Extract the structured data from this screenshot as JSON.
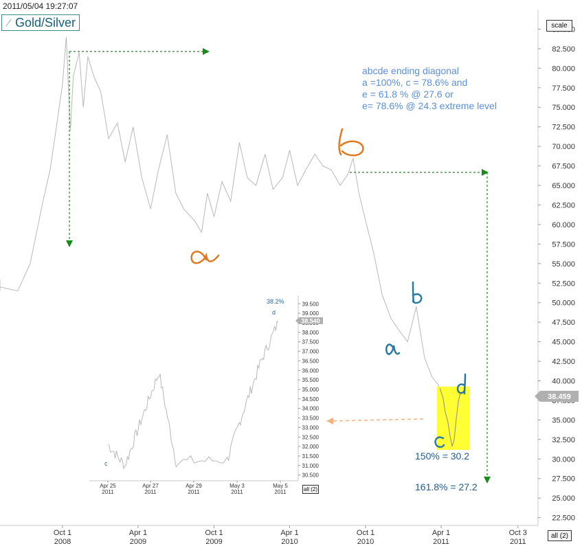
{
  "header": {
    "timestamp": "2011/05/04 19:27:07",
    "title": "Gold/Silver",
    "title_icon": "line-chart-icon",
    "scale_label": "scale",
    "all_label": "all (2)",
    "inset_all_label": "all (2)"
  },
  "annotations": {
    "note_lines": [
      "abcde ending diagonal",
      "a =100%, c = 78.6% and",
      "e = 61.8 % @ 27.6 or",
      "e= 78.6% @ 24.3 extreme level"
    ],
    "fib_150": "150% = 30.2",
    "fib_161": "161.8% = 27.2",
    "hand_labels": {
      "orange_a": "a",
      "orange_b": "b",
      "blue_a": "a",
      "blue_b": "b",
      "blue_c": "c",
      "blue_d": "d"
    },
    "colors": {
      "price_line": "#b8b8b8",
      "axis_text": "#333333",
      "guide_green": "#1a8a1a",
      "highlight": "#ffff33",
      "orange_ink": "#e07820",
      "blue_ink": "#2a7aa0",
      "note_text": "#5b8fd6",
      "fib_text": "#1e5c8e",
      "inset_arrow": "#f5b080",
      "last_price_badge": "#b0b0b0"
    }
  },
  "chart_data": [
    {
      "type": "line",
      "series": [
        {
          "x": [
            "2007-11-01",
            "2008-01-01",
            "2008-02-15",
            "2008-03-15",
            "2008-05-01",
            "2008-06-15",
            "2008-07-15",
            "2008-08-15",
            "2008-09-01",
            "2008-09-15",
            "2008-10-01",
            "2008-10-10",
            "2008-10-20",
            "2008-10-27",
            "2008-11-10",
            "2008-11-20",
            "2008-12-01",
            "2008-12-15",
            "2009-01-01",
            "2009-01-20",
            "2009-02-10",
            "2009-03-01",
            "2009-03-20",
            "2009-04-10",
            "2009-05-01",
            "2009-05-20",
            "2009-06-10",
            "2009-07-01",
            "2009-07-20",
            "2009-08-15",
            "2009-09-01",
            "2009-09-15",
            "2009-10-01",
            "2009-10-20",
            "2009-11-10",
            "2009-12-01",
            "2009-12-20",
            "2010-01-10",
            "2010-02-01",
            "2010-02-20",
            "2010-03-15",
            "2010-04-01",
            "2010-04-20",
            "2010-05-10",
            "2010-06-01",
            "2010-06-20",
            "2010-07-10",
            "2010-08-01",
            "2010-08-20",
            "2010-09-01",
            "2010-09-15",
            "2010-10-01",
            "2010-10-20",
            "2010-11-10",
            "2010-12-01",
            "2010-12-20",
            "2011-01-10",
            "2011-01-31",
            "2011-02-20",
            "2011-03-10",
            "2011-03-25",
            "2011-04-05",
            "2011-04-15",
            "2011-04-25",
            "2011-05-04"
          ],
          "values": [
            52.3,
            52.5,
            51.5,
            53.0,
            52.0,
            51.5,
            55.0,
            63.0,
            67.0,
            72.0,
            78.0,
            84.0,
            72.0,
            79.0,
            82.0,
            75.0,
            81.5,
            79.0,
            77.0,
            71.0,
            73.0,
            68.0,
            72.5,
            66.0,
            62.0,
            67.0,
            71.5,
            64.0,
            62.0,
            60.5,
            59.0,
            64.0,
            61.0,
            65.5,
            63.0,
            70.5,
            66.0,
            65.0,
            69.0,
            64.5,
            66.0,
            69.5,
            65.0,
            67.0,
            69.0,
            67.5,
            67.0,
            65.0,
            66.5,
            68.5,
            64.0,
            60.5,
            56.5,
            51.0,
            48.0,
            46.5,
            45.0,
            49.5,
            43.0,
            40.5,
            39.5,
            35.0,
            31.5,
            35.5,
            38.459
          ],
          "last_value": "38.459"
        }
      ],
      "ylim": [
        21.5,
        87.5
      ],
      "y_ticks": [
        "22.500",
        "25.000",
        "27.500",
        "30.000",
        "32.500",
        "35.000",
        "37.500",
        "40.000",
        "42.500",
        "45.000",
        "47.500",
        "50.000",
        "52.500",
        "55.000",
        "57.500",
        "60.000",
        "62.500",
        "65.000",
        "67.500",
        "70.000",
        "72.500",
        "75.000",
        "77.500",
        "80.000",
        "82.500",
        "85.000"
      ],
      "x_ticks": [
        {
          "value": "2008-10-01",
          "line1": "Oct 1",
          "line2": "2008"
        },
        {
          "value": "2009-04-01",
          "line1": "Apr 1",
          "line2": "2009"
        },
        {
          "value": "2009-10-01",
          "line1": "Oct 1",
          "line2": "2009"
        },
        {
          "value": "2010-04-01",
          "line1": "Apr 1",
          "line2": "2010"
        },
        {
          "value": "2010-10-01",
          "line1": "Oct 1",
          "line2": "2010"
        },
        {
          "value": "2011-04-01",
          "line1": "Apr 1",
          "line2": "2011"
        },
        {
          "value": "2011-10-03",
          "line1": "Oct 3",
          "line2": "2011"
        }
      ],
      "grid": false
    },
    {
      "type": "line",
      "series": [
        {
          "x": [
            "2011-04-25",
            "2011-04-26",
            "2011-04-27",
            "2011-04-28",
            "2011-04-29",
            "2011-05-02",
            "2011-05-03",
            "2011-05-04",
            "2011-05-05"
          ],
          "values": [
            32.1,
            31.0,
            33.5,
            35.9,
            31.2,
            31.3,
            34.0,
            36.5,
            38.54
          ],
          "last_value": "38.540"
        }
      ],
      "ylim": [
        30.2,
        39.8
      ],
      "y_ticks": [
        "30.500",
        "31.000",
        "31.500",
        "32.000",
        "32.500",
        "33.000",
        "33.500",
        "34.000",
        "34.500",
        "35.000",
        "35.500",
        "36.000",
        "36.500",
        "37.000",
        "37.500",
        "38.000",
        "38.500",
        "39.000",
        "39.500"
      ],
      "x_ticks": [
        {
          "line1": "Apr 25",
          "line2": "2011"
        },
        {
          "line1": "Apr 27",
          "line2": "2011"
        },
        {
          "line1": "Apr 29",
          "line2": "2011"
        },
        {
          "line1": "May 3",
          "line2": "2011"
        },
        {
          "line1": "May 5",
          "line2": "2011"
        }
      ],
      "annotations": {
        "top_label": "38.2%",
        "d_label": "d",
        "c_label": "c"
      },
      "grid": false
    }
  ]
}
